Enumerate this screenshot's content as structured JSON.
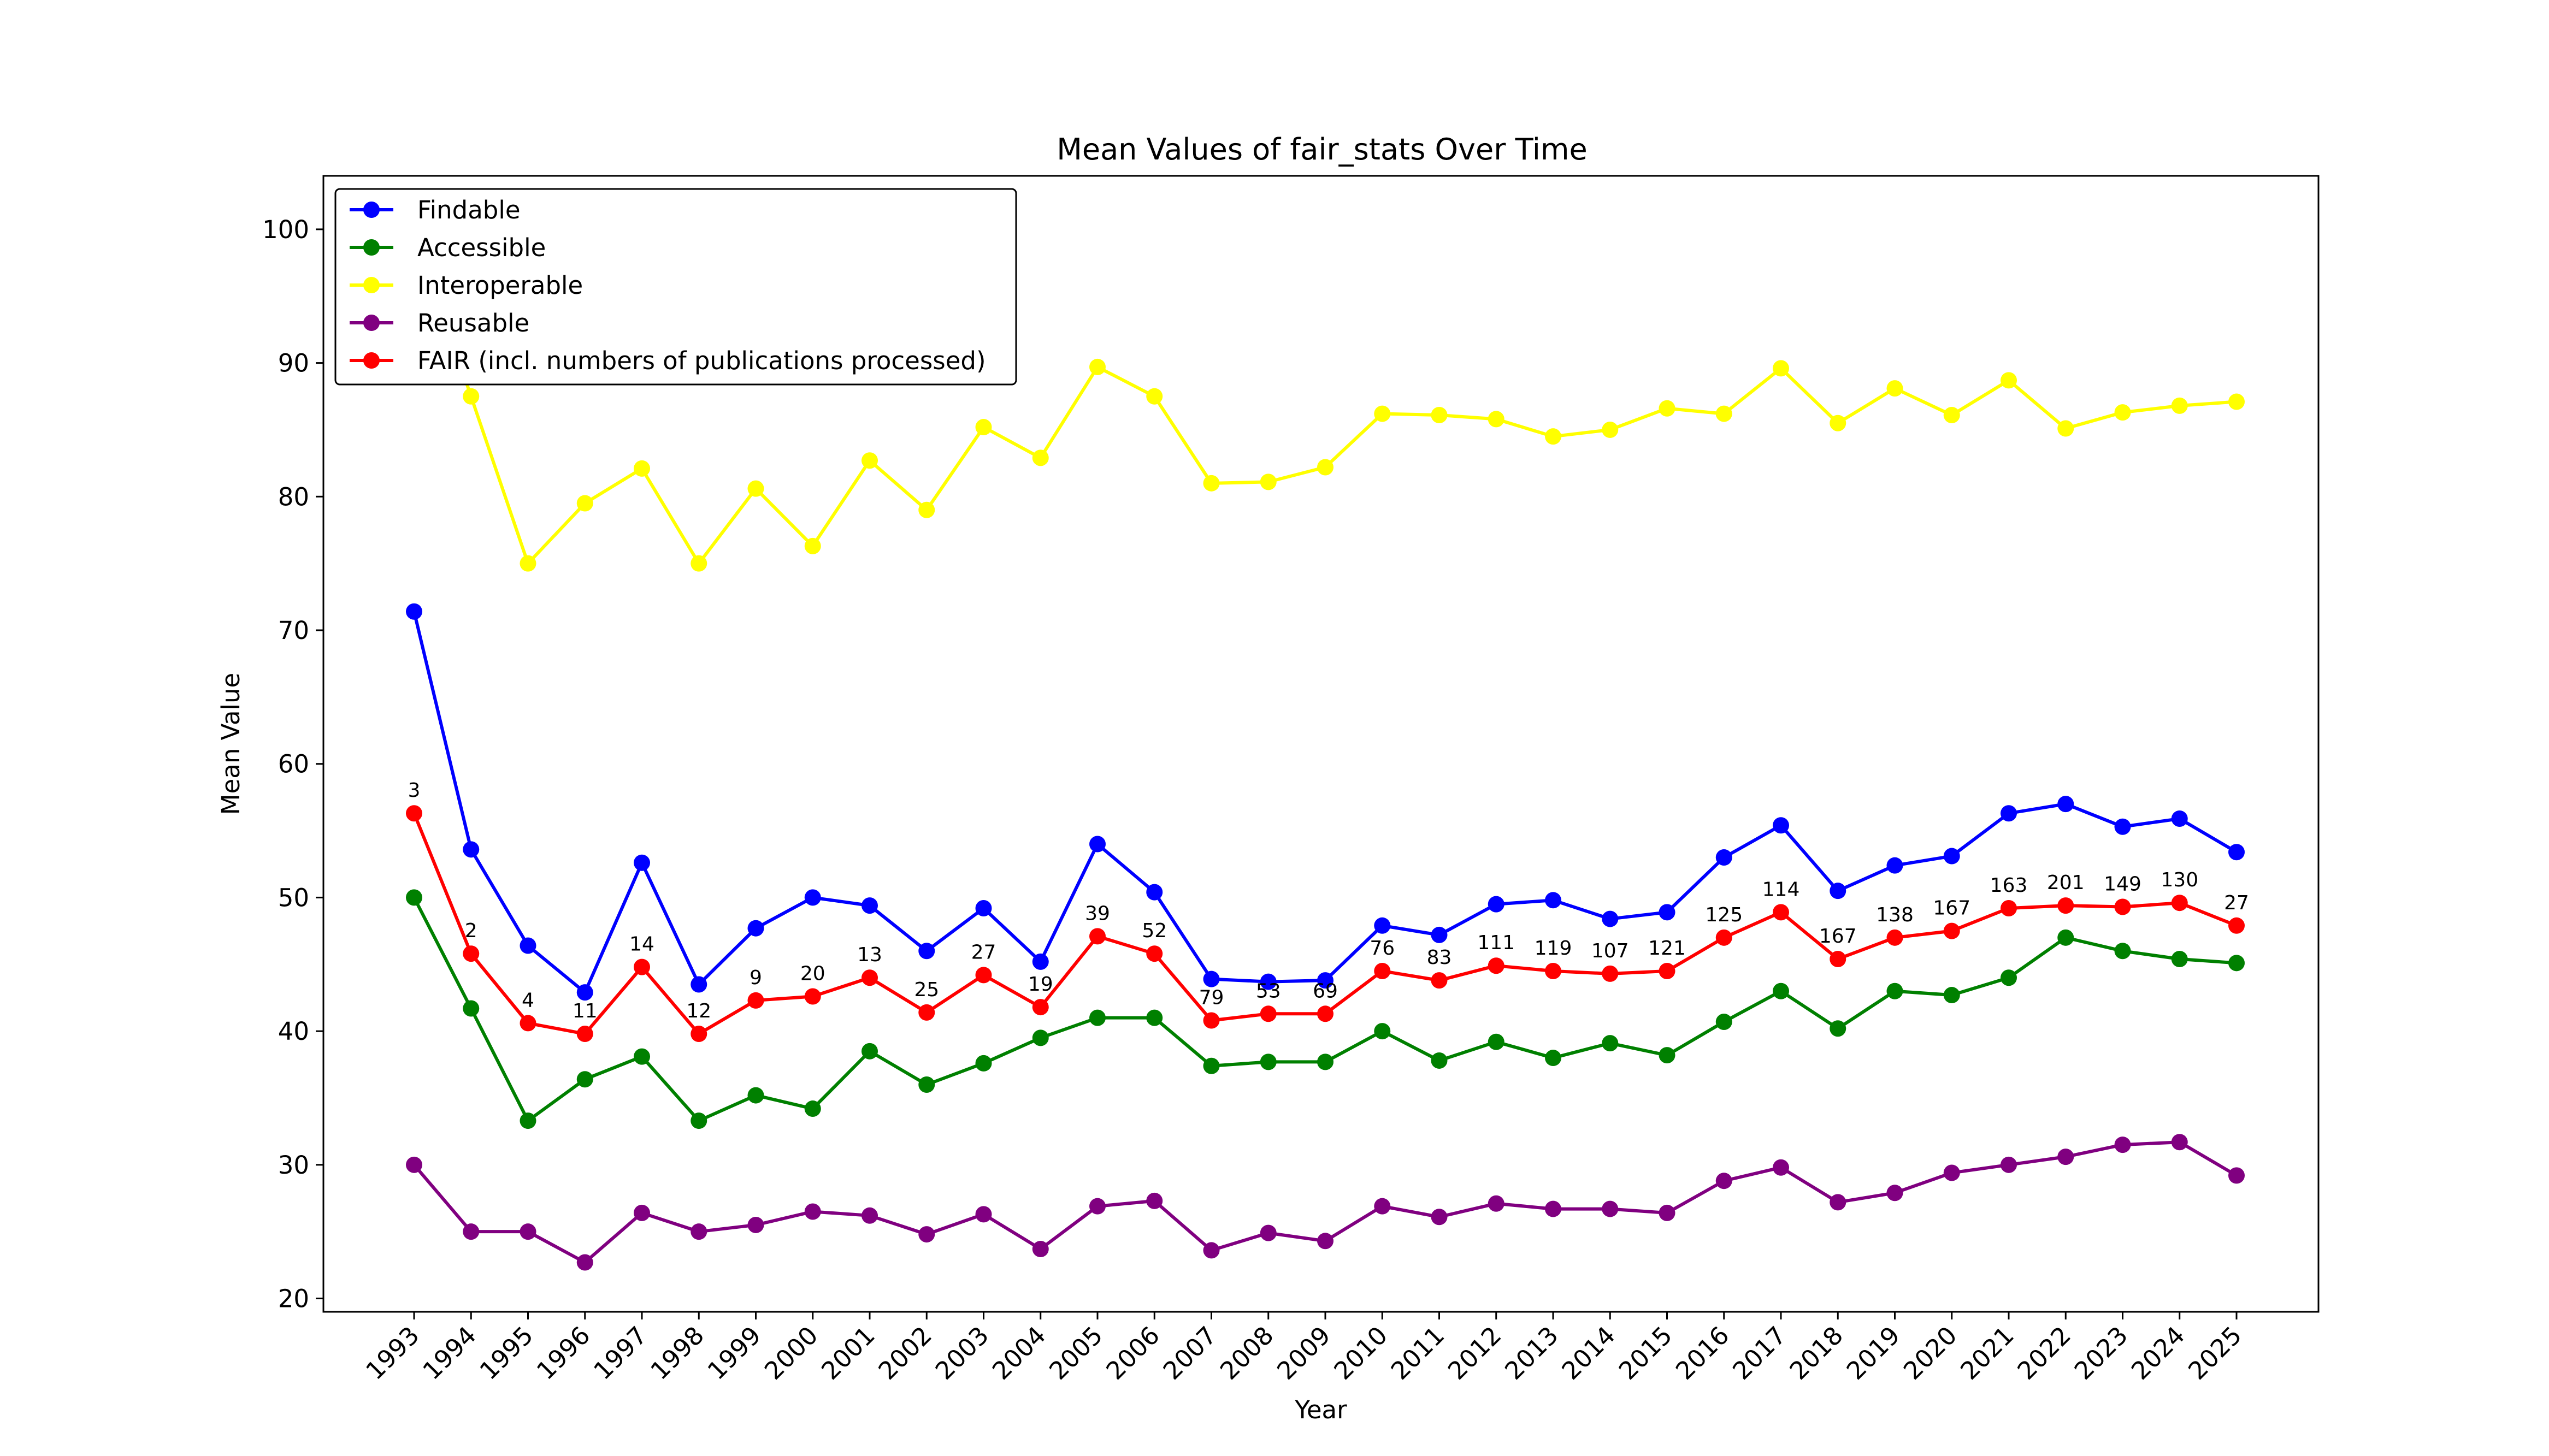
{
  "chart_data": {
    "type": "line",
    "title": "Mean Values of fair_stats Over Time",
    "xlabel": "Year",
    "ylabel": "Mean Value",
    "ylim": [
      19,
      104
    ],
    "yticks": [
      20,
      30,
      40,
      50,
      60,
      70,
      80,
      90,
      100
    ],
    "grid": false,
    "legend_position": "top-left",
    "categories": [
      "1993",
      "1994",
      "1995",
      "1996",
      "1997",
      "1998",
      "1999",
      "2000",
      "2001",
      "2002",
      "2003",
      "2004",
      "2005",
      "2006",
      "2007",
      "2008",
      "2009",
      "2010",
      "2011",
      "2012",
      "2013",
      "2014",
      "2015",
      "2016",
      "2017",
      "2018",
      "2019",
      "2020",
      "2021",
      "2022",
      "2023",
      "2024",
      "2025"
    ],
    "series": [
      {
        "name": "Findable",
        "color": "#0000ff",
        "values": [
          71.4,
          53.6,
          46.4,
          42.9,
          52.6,
          43.5,
          47.7,
          50.0,
          49.4,
          46.0,
          49.2,
          45.2,
          54.0,
          50.4,
          43.9,
          43.7,
          43.8,
          47.9,
          47.2,
          49.5,
          49.8,
          48.4,
          48.9,
          53.0,
          55.4,
          50.5,
          52.4,
          53.1,
          56.3,
          57.0,
          55.3,
          55.9,
          53.4
        ]
      },
      {
        "name": "Accessible",
        "color": "#008000",
        "values": [
          50.0,
          41.7,
          33.3,
          36.4,
          38.1,
          33.3,
          35.2,
          34.2,
          38.5,
          36.0,
          37.6,
          39.5,
          41.0,
          41.0,
          37.4,
          37.7,
          37.7,
          40.0,
          37.8,
          39.2,
          38.0,
          39.1,
          38.2,
          40.7,
          43.0,
          40.2,
          43.0,
          42.7,
          44.0,
          47.0,
          46.0,
          45.4,
          45.1
        ]
      },
      {
        "name": "Interoperable",
        "color": "#ffff00",
        "values": [
          100.0,
          87.5,
          75.0,
          79.5,
          82.1,
          75.0,
          80.6,
          76.3,
          82.7,
          79.0,
          85.2,
          82.9,
          89.7,
          87.5,
          81.0,
          81.1,
          82.2,
          86.2,
          86.1,
          85.8,
          84.5,
          85.0,
          86.6,
          86.2,
          89.6,
          85.5,
          88.1,
          86.1,
          88.7,
          85.1,
          86.3,
          86.8,
          87.1
        ]
      },
      {
        "name": "Reusable",
        "color": "#800080",
        "values": [
          30.0,
          25.0,
          25.0,
          22.7,
          26.4,
          25.0,
          25.5,
          26.5,
          26.2,
          24.8,
          26.3,
          23.7,
          26.9,
          27.3,
          23.6,
          24.9,
          24.3,
          26.9,
          26.1,
          27.1,
          26.7,
          26.7,
          26.4,
          28.8,
          29.8,
          27.2,
          27.9,
          29.4,
          30.0,
          30.6,
          31.5,
          31.7,
          29.2
        ]
      },
      {
        "name": "FAIR (incl. numbers of publications processed)",
        "color": "#ff0000",
        "values": [
          56.3,
          45.8,
          40.6,
          39.8,
          44.8,
          39.8,
          42.3,
          42.6,
          44.0,
          41.4,
          44.2,
          41.8,
          47.1,
          45.8,
          40.8,
          41.3,
          41.3,
          44.5,
          43.8,
          44.9,
          44.5,
          44.3,
          44.5,
          47.0,
          48.9,
          45.4,
          47.0,
          47.5,
          49.2,
          49.4,
          49.3,
          49.6,
          47.9
        ],
        "labels": [
          "3",
          "2",
          "4",
          "11",
          "14",
          "12",
          "9",
          "20",
          "13",
          "25",
          "27",
          "19",
          "39",
          "52",
          "79",
          "53",
          "69",
          "76",
          "83",
          "111",
          "119",
          "107",
          "121",
          "125",
          "114",
          "167",
          "138",
          "167",
          "163",
          "201",
          "149",
          "130",
          "27"
        ]
      }
    ]
  }
}
